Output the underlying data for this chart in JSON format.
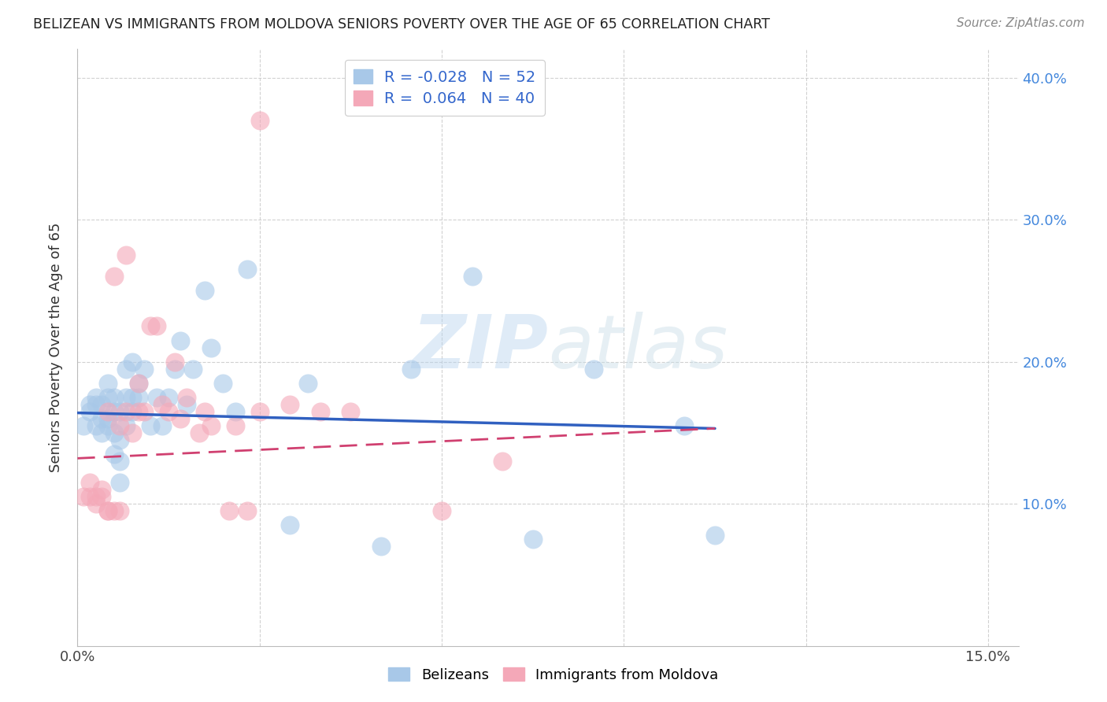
{
  "title": "BELIZEAN VS IMMIGRANTS FROM MOLDOVA SENIORS POVERTY OVER THE AGE OF 65 CORRELATION CHART",
  "source": "Source: ZipAtlas.com",
  "ylabel": "Seniors Poverty Over the Age of 65",
  "xlim": [
    0.0,
    0.155
  ],
  "ylim": [
    0.0,
    0.42
  ],
  "belizean_R": -0.028,
  "belizean_N": 52,
  "moldova_R": 0.064,
  "moldova_N": 40,
  "legend_label1": "Belizeans",
  "legend_label2": "Immigrants from Moldova",
  "blue_color": "#a8c8e8",
  "pink_color": "#f4a8b8",
  "blue_line_color": "#3060c0",
  "pink_line_color": "#d04070",
  "watermark": "ZIPatlas",
  "belizean_x": [
    0.001,
    0.002,
    0.002,
    0.003,
    0.003,
    0.003,
    0.004,
    0.004,
    0.004,
    0.005,
    0.005,
    0.005,
    0.005,
    0.006,
    0.006,
    0.006,
    0.006,
    0.007,
    0.007,
    0.007,
    0.007,
    0.008,
    0.008,
    0.008,
    0.009,
    0.009,
    0.009,
    0.01,
    0.01,
    0.011,
    0.012,
    0.013,
    0.014,
    0.015,
    0.016,
    0.017,
    0.018,
    0.019,
    0.021,
    0.022,
    0.024,
    0.026,
    0.028,
    0.035,
    0.038,
    0.05,
    0.055,
    0.065,
    0.075,
    0.085,
    0.1,
    0.105
  ],
  "belizean_y": [
    0.155,
    0.17,
    0.165,
    0.17,
    0.175,
    0.155,
    0.15,
    0.16,
    0.17,
    0.16,
    0.155,
    0.175,
    0.185,
    0.135,
    0.15,
    0.165,
    0.175,
    0.115,
    0.13,
    0.145,
    0.165,
    0.155,
    0.175,
    0.195,
    0.165,
    0.175,
    0.2,
    0.185,
    0.175,
    0.195,
    0.155,
    0.175,
    0.155,
    0.175,
    0.195,
    0.215,
    0.17,
    0.195,
    0.25,
    0.21,
    0.185,
    0.165,
    0.265,
    0.085,
    0.185,
    0.07,
    0.195,
    0.26,
    0.075,
    0.195,
    0.155,
    0.078
  ],
  "moldova_x": [
    0.001,
    0.002,
    0.002,
    0.003,
    0.003,
    0.004,
    0.004,
    0.005,
    0.005,
    0.005,
    0.006,
    0.006,
    0.007,
    0.007,
    0.008,
    0.008,
    0.009,
    0.01,
    0.01,
    0.011,
    0.012,
    0.013,
    0.014,
    0.015,
    0.016,
    0.017,
    0.018,
    0.02,
    0.021,
    0.022,
    0.025,
    0.026,
    0.028,
    0.03,
    0.03,
    0.035,
    0.04,
    0.045,
    0.06,
    0.07
  ],
  "moldova_y": [
    0.105,
    0.105,
    0.115,
    0.1,
    0.105,
    0.105,
    0.11,
    0.095,
    0.095,
    0.165,
    0.095,
    0.26,
    0.095,
    0.155,
    0.165,
    0.275,
    0.15,
    0.165,
    0.185,
    0.165,
    0.225,
    0.225,
    0.17,
    0.165,
    0.2,
    0.16,
    0.175,
    0.15,
    0.165,
    0.155,
    0.095,
    0.155,
    0.095,
    0.37,
    0.165,
    0.17,
    0.165,
    0.165,
    0.095,
    0.13
  ]
}
